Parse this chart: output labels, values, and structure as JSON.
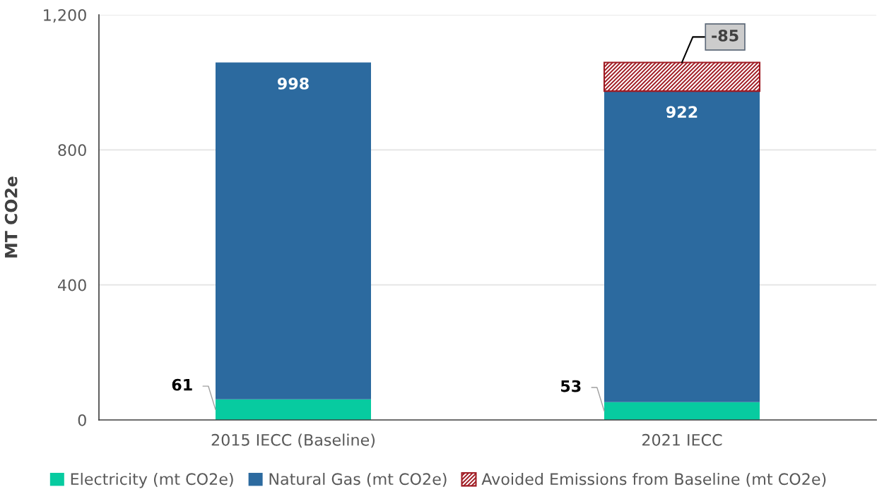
{
  "chart_data": {
    "type": "bar",
    "stacked": true,
    "ylabel": "MT CO2e",
    "categories": [
      "2015 IECC (Baseline)",
      "2021 IECC"
    ],
    "series": [
      {
        "name": "Electricity (mt CO2e)",
        "color": "#07cba0",
        "values": [
          61,
          53
        ]
      },
      {
        "name": "Natural Gas (mt CO2e)",
        "color": "#2c6a9f",
        "values": [
          998,
          922
        ]
      },
      {
        "name": "Avoided Emissions from Baseline (mt CO2e)",
        "color": "#a01c24",
        "values": [
          null,
          -85
        ],
        "base": [
          null,
          1059
        ]
      }
    ],
    "ylim": [
      0,
      1200
    ],
    "yticks": [
      0,
      400,
      800,
      {
        "value": 1200,
        "label": "1,200"
      }
    ],
    "grid": "y",
    "legend": "bottom",
    "data_labels": true
  }
}
